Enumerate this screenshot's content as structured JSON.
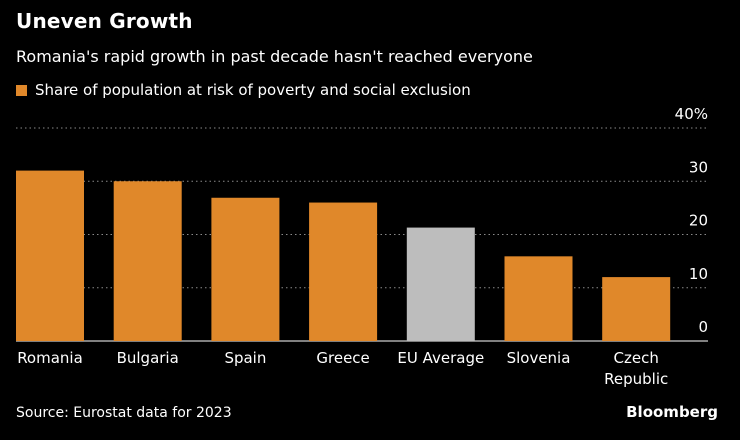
{
  "colors": {
    "background": "#000000",
    "bar": "#E0882A",
    "bar_highlight": "#BDBDBD",
    "grid": "#8a8a8a",
    "text": "#ffffff"
  },
  "chart_data": {
    "type": "bar",
    "title": "Uneven Growth",
    "subtitle": "Romania's rapid growth in past decade hasn't reached everyone",
    "categories": [
      "Romania",
      "Bulgaria",
      "Spain",
      "Greece",
      "EU Average",
      "Slovenia",
      "Czech Republic"
    ],
    "category_lines": [
      [
        "Romania"
      ],
      [
        "Bulgaria"
      ],
      [
        "Spain"
      ],
      [
        "Greece"
      ],
      [
        "EU Average"
      ],
      [
        "Slovenia"
      ],
      [
        "Czech",
        "Republic"
      ]
    ],
    "series": [
      {
        "name": "Share of population at risk of poverty and social exclusion",
        "values": [
          32.0,
          30.0,
          26.9,
          26.0,
          21.3,
          15.9,
          12.0
        ]
      }
    ],
    "highlight_index": 4,
    "ylim": [
      0,
      40
    ],
    "yticks": [
      0,
      10,
      20,
      30,
      40
    ],
    "ytick_labels": [
      "0",
      "10",
      "20",
      "30",
      "40%"
    ],
    "grid": true,
    "xlabel": "",
    "ylabel": ""
  },
  "footer": {
    "source": "Source: Eurostat data for 2023",
    "brand": "Bloomberg"
  }
}
